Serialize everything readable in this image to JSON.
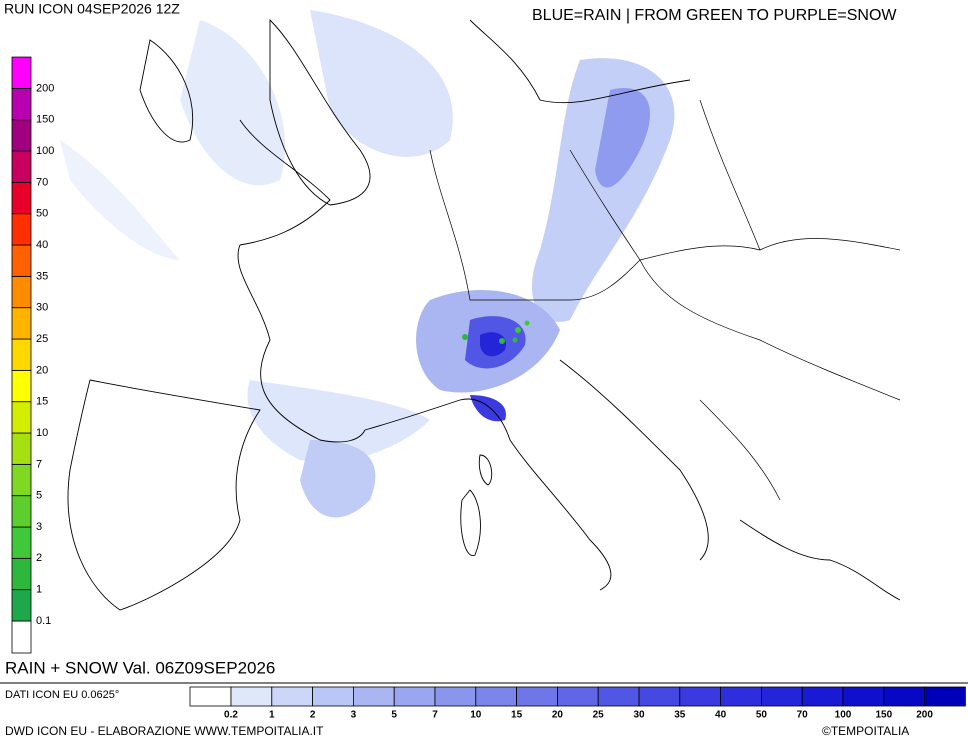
{
  "header": {
    "run": "RUN ICON 04SEP2026 12Z",
    "note": "BLUE=RAIN | FROM GREEN TO PURPLE=SNOW",
    "valid": "RAIN + SNOW Val. 06Z09SEP2026"
  },
  "footer": {
    "source": "DATI ICON EU 0.0625°",
    "credit": "DWD ICON EU - ELABORAZIONE WWW.TEMPOITALIA.IT",
    "copyright": "©TEMPOITALIA"
  },
  "snow_scale": [
    {
      "value": 0.1,
      "color": "#1fa84a"
    },
    {
      "value": 1,
      "color": "#2db83c"
    },
    {
      "value": 2,
      "color": "#3fc83a"
    },
    {
      "value": 3,
      "color": "#5ccf2e"
    },
    {
      "value": 5,
      "color": "#7fd822"
    },
    {
      "value": 7,
      "color": "#a6e010"
    },
    {
      "value": 10,
      "color": "#d4ee00"
    },
    {
      "value": 15,
      "color": "#ffff00"
    },
    {
      "value": 20,
      "color": "#ffd800"
    },
    {
      "value": 25,
      "color": "#ffb400"
    },
    {
      "value": 30,
      "color": "#ff8c00"
    },
    {
      "value": 35,
      "color": "#ff6000"
    },
    {
      "value": 40,
      "color": "#ff3000"
    },
    {
      "value": 50,
      "color": "#e8002a"
    },
    {
      "value": 70,
      "color": "#c80060"
    },
    {
      "value": 100,
      "color": "#a00080"
    },
    {
      "value": 150,
      "color": "#b800b0"
    },
    {
      "value": 200,
      "color": "#ff00ff"
    }
  ],
  "rain_scale": [
    {
      "value": 0.2,
      "color": "#dfe8fb"
    },
    {
      "value": 1,
      "color": "#cbd6f8"
    },
    {
      "value": 2,
      "color": "#bac6f5"
    },
    {
      "value": 3,
      "color": "#aab6f2"
    },
    {
      "value": 5,
      "color": "#9aa6ef"
    },
    {
      "value": 7,
      "color": "#8a96ec"
    },
    {
      "value": 10,
      "color": "#7c86ea"
    },
    {
      "value": 15,
      "color": "#6e76e8"
    },
    {
      "value": 20,
      "color": "#6066e6"
    },
    {
      "value": 25,
      "color": "#5256e4"
    },
    {
      "value": 30,
      "color": "#4648e2"
    },
    {
      "value": 35,
      "color": "#3a3ae0"
    },
    {
      "value": 40,
      "color": "#2e2edc"
    },
    {
      "value": 50,
      "color": "#2424d8"
    },
    {
      "value": 70,
      "color": "#1a1ad4"
    },
    {
      "value": 100,
      "color": "#1010cc"
    },
    {
      "value": 150,
      "color": "#0808c4"
    },
    {
      "value": 200,
      "color": "#0000b8"
    }
  ]
}
